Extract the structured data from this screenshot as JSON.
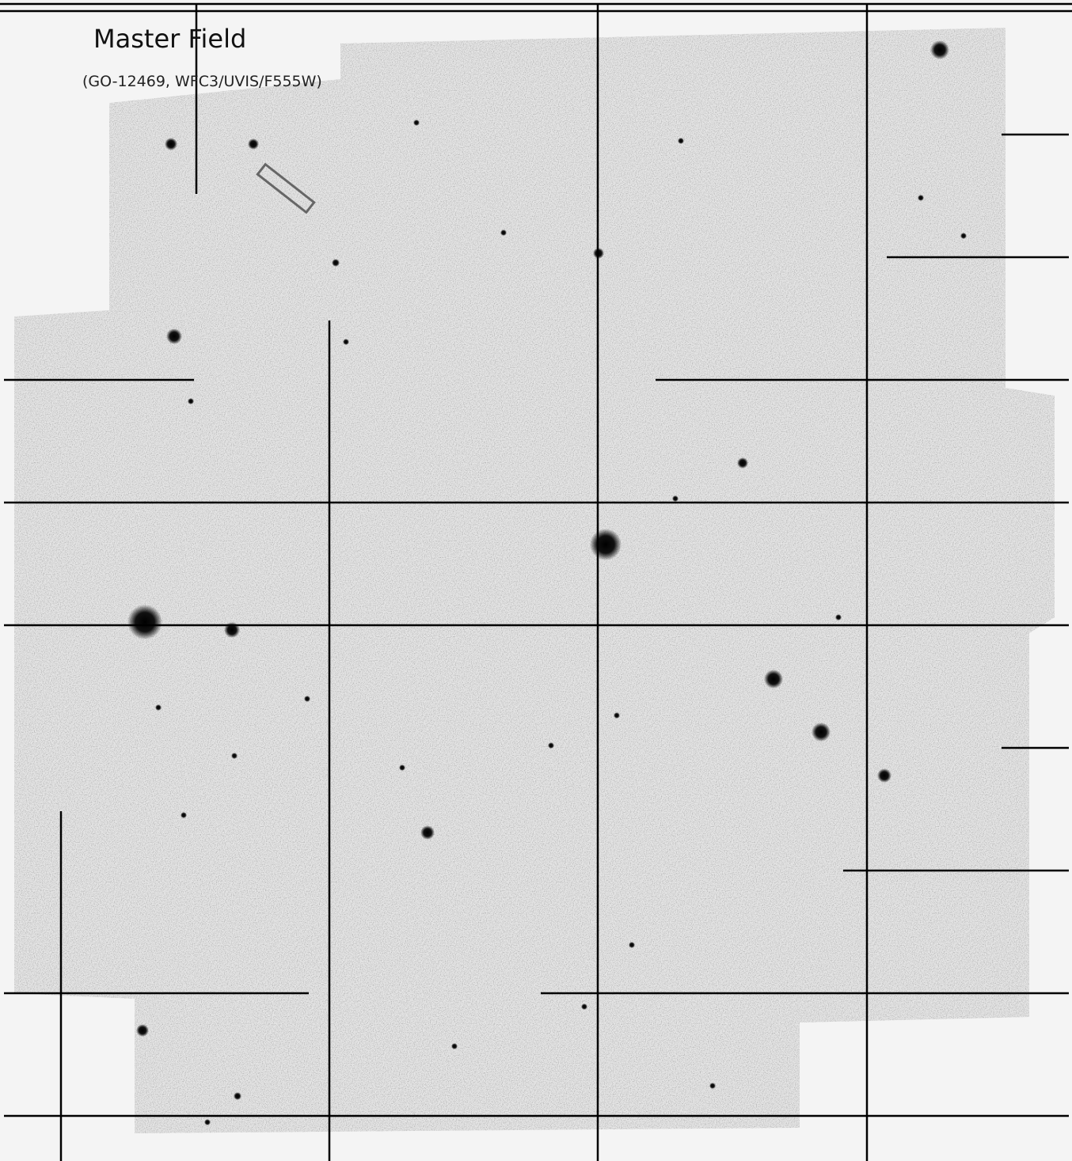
{
  "header": {
    "title": "Master Field",
    "subtitle": "(GO-12469, WFC3/UVIS/F555W)"
  }
}
